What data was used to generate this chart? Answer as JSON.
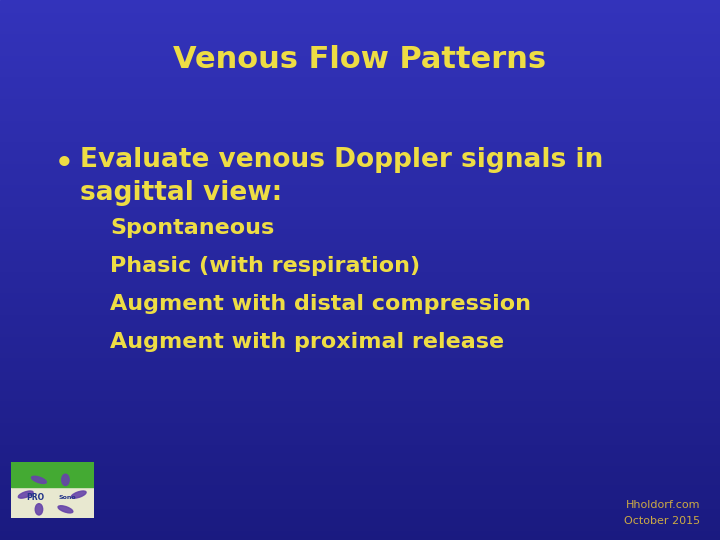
{
  "title": "Venous Flow Patterns",
  "title_color": "#EEDD44",
  "bullet_text_line1": "•  Evaluate venous Doppler signals in",
  "bullet_text_line2": "   sagittal view:",
  "bullet_color": "#EEDD44",
  "sub_items": [
    "Spontaneous",
    "Phasic (with respiration)",
    "Augment with distal compression",
    "Augment with proximal release"
  ],
  "sub_color": "#EEDD44",
  "bg_color_top": "#3333BB",
  "bg_color_bottom": "#1A1A80",
  "watermark_line1": "Hholdorf.com",
  "watermark_line2": "October 2015",
  "watermark_color": "#CCAA44",
  "title_fontsize": 22,
  "bullet_fontsize": 19,
  "sub_fontsize": 16
}
